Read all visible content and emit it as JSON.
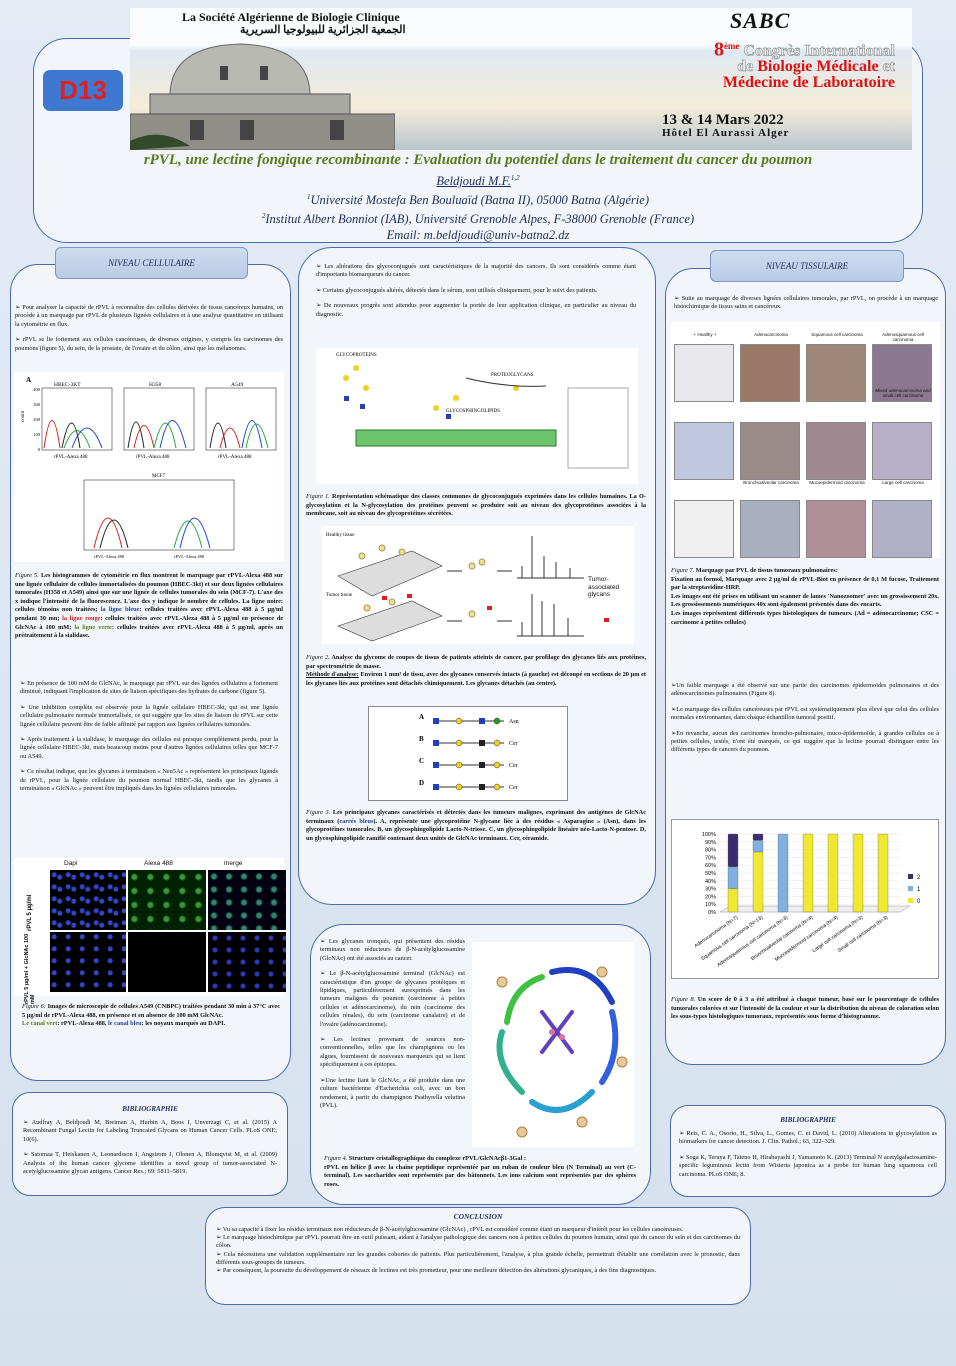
{
  "banner": {
    "society_fr": "La Société Algérienne de Biologie Clinique",
    "society_ar": "الجمعية الجزائرية للبيولوجيا السريرية",
    "logo": "SABC",
    "congress_line1_num": "8",
    "congress_line1_sup": "ème",
    "congress_line1": "Congrès International",
    "congress_line2_pre": "de",
    "congress_line2": "Biologie Médicale",
    "congress_line2_post": "et",
    "congress_line3": "Médecine de Laboratoire",
    "dates": "13 & 14 Mars 2022",
    "venue": "Hôtel El Aurassi Alger"
  },
  "badge": "D13",
  "header": {
    "title": "rPVL, une lectine fongique recombinante : Evaluation du potentiel dans le traitement du cancer du poumon",
    "author": "Beldjoudi M.F.",
    "author_sup": "1,2",
    "aff1_sup": "1",
    "aff1": "Université Mostefa Ben Bouluaïd (Batna II), 05000 Batna (Algérie)",
    "aff2_sup": "2",
    "aff2": "Institut Albert Bonniot (IAB), Université Grenoble Alpes, F-38000 Grenoble (France)",
    "email": "Email: m.beldjoudi@univ-batna2.dz"
  },
  "colors": {
    "accent": "#4a6aa8",
    "title_green": "#5a7a1a",
    "badge_bg": "#3e78d0",
    "badge_text": "#e02020"
  },
  "left": {
    "label": "NIVEAU CELLULAIRE",
    "intro": [
      "➢ Pour analyser la capacité de rPVL à reconnaître des cellules dérivées de tissus cancéreux humains, on procède à un marquage par rPVL de plusieurs lignées cellulaires et à une analyse quantitative en utilisant la cytométrie en flux.",
      "➢ rPVL se lie fortement aux cellules cancéreuses, de diverses origines, y compris les carcinomes des poumons (figure 5), du sein, de la prostate, de l'ovaire et du côlon, ainsi que les mélanomes."
    ],
    "fig5": {
      "panel": "A",
      "lines": [
        "HBEC-3KT",
        "H358",
        "A549",
        "MCF7"
      ],
      "xlabel": "rPVL-Alexa 488",
      "ylabel": "count",
      "yticks": [
        "0",
        "100",
        "200",
        "300",
        "400"
      ]
    },
    "fig5_caption": {
      "fig": "Figure 5.",
      "text": " Les histogrammes de cytométrie en flux montrent le marquage par rPVL-Alexa 488 sur une lignée cellulaire de cellules immortalisées du poumon (HBEC-3kt) et sur deux lignées cellulaires tumorales (H358 et A549) ainsi que sur une lignée de cellules tumorales du sein (MCF-7). L'axe des x indique l'intensité de la fluorescence. L'axe des y indique le nombre de cellules. La ligne noire: cellules témoins non traitées; ",
      "blue": "la ligne bleue",
      "t2": ": cellules traitées avec rPVL-Alexa 488 à 5 µg/ml pendant 30 mn; ",
      "red": "la ligne rouge",
      "t3": ": cellules traitées avec rPVL-Alexa 488 à 5 µg/ml en présence de GlcNAc à 100 mM; ",
      "green": "la ligne verte",
      "t4": ": cellules traitées avec rPVL-Alexa 488 à 5 µg/ml, après un prétraitement à la sialidase."
    },
    "points": [
      "➢ En présence de 100 mM de GlcNAc, le marquage par rPVL sur des lignées cellulaires a fortement diminué, indiquant l'implication de sites de liaison spécifiques des hydrates de carbone (figure 5).",
      "➢ Une inhibition complète est observée pour la lignée cellulaire HBEC-3kt, qui est une lignée cellulaire pulmonaire normale immortalisée, ce qui suggère que les sites de liaison de rPVL sur cette lignée cellulaire peuvent être de faible affinité par rapport aux lignées cellulaires tumorales.",
      "➢ Après traitement à la sialidase, le marquage des cellules est presque complètement perdu, pour la lignée cellulaire HBEC-3kt, mais beaucoup moins pour d'autres lignées cellulaires telles que MCF-7 ou A549.",
      "➢ Ce résultat indique, que les glycanes à terminaison « Neu5Ac » représentent les principaux ligands de rPVL, pour la lignée cellulaire du poumon normal HBEC-3kt, tandis que les glycanes à terminaison « GlcNAc » peuvent être impliqués dans les lignées cellulaires tumorales."
    ],
    "fig6": {
      "cols": [
        "Dapi",
        "Alexa 488",
        "merge"
      ],
      "rows": [
        "rPVL 5 µg/ml",
        "rPVL 5 µg/ml + GlcNAc 100 mM"
      ]
    },
    "fig6_caption": {
      "fig": "Figure 6:",
      "text": " Images de microscopie de cellules A549 (CNBPC) traitées pendant 30 min à 37°C avec 5 µg/ml de rPVL-Alexa 488, en présence et en absence de 100 mM GlcNAc.",
      "green": "Le canal vert",
      "t2": ": rPVL-Alexa 488, ",
      "blue": "le canal bleu",
      "t3": ": les noyaux marqués au DAPI."
    }
  },
  "biblio_left": {
    "title": "BIBLIOGRAPHIE",
    "refs": [
      "➢ Audfray A, Beldjoudi M, Breiman A, Hurbin A, Boos I, Unverzagt C, et al. (2015) A Recombinant Fungal Lectin for Labeling Truncated Glycans on Human Cancer Cells. PLoS ONE; 10(6).",
      "➢ Satomaa T, Heiskanen A, Leonardsson I, Angstrom J, Olonen A, Blomqvist M, et al. (2009) Analysis of the human cancer glycome identifies a novel group of tumor-associated N-acetylglucosamine glycan antigens. Cancer Res.; 69: 5811–5819."
    ]
  },
  "middle": {
    "intro": [
      "➢ Les altérations des glycoconjugués sont caractéristiques de la majorité des cancers. Ils sont considérés comme étant d'importants biomarqueurs du cancer.",
      "➢ Certains glycoconjugués altérés, détectés dans le sérum, sont utilisés cliniquement, pour le suivi des patients.",
      "➢ De nouveaux progrès sont attendus pour augmenter la portée de leur application clinique, en particulier au niveau du diagnostic."
    ],
    "fig1_labels": [
      "GLYCOPROTEINS",
      "PROTEOGLYCANS",
      "GLYCOSPHINGOLIPIDS"
    ],
    "fig1_caption": {
      "fig": "Figure 1.",
      "text": " Représentation schématique des classes communes de glycoconjugués exprimées dans les cellules humaines. La O-glycosylation et la N-glycosylation des protéines peuvent se produire soit au niveau des glycoprotéines associées à la membrane, soit au niveau des glycoprotéines sécrétées."
    },
    "fig2_labels": {
      "healthy": "Healthy tissue",
      "tumor": "Tumor tissue",
      "tag": "Tumor-associated glycans"
    },
    "fig2_caption": {
      "fig": "Figure 2.",
      "text": " Analyse du glycome de coupes de tissus de patients atteints de cancer, par profilage des glycanes liés aux protéines, par spectrométrie de masse.",
      "method_label": "Méthode d'analyse:",
      "method": " Environ 1 mm³ de tissu, avec des glycanes conservés intacts (à gauche) est découpé en sections de 20 µm et les glycanes liés aux protéines sont détachés chimiquement. Les glycanes détachés (au centre)."
    },
    "fig3_rows": [
      {
        "k": "A",
        "end": "Asn"
      },
      {
        "k": "B",
        "end": "Cer"
      },
      {
        "k": "C",
        "end": "Cer"
      },
      {
        "k": "D",
        "end": "Cer"
      }
    ],
    "fig3_caption": {
      "fig": "Figure 3.",
      "text": " Les principaux glycanes caractérisés et détectés dans les tumeurs malignes, exprimant des antigènes de GlcNAc terminaux (",
      "blue": "carrés bleus",
      "t2": "). A, représente une glycoprotéine N-glycane liée à des résidus « Asparagine » (Asn), dans les glycoprotéines tumorales. B, un glycosphingolipide Lacto-N-triose. C, un glycosphingolipide linéaire néo-Lacto-N-pentose. D, un glycosphingolipide ramifié contenant deux unités de GlcNAc terminaux. Cer, céramide."
    },
    "points": [
      "➢ Les glycanes tronqués, qui présentent des résidus terminaux non réducteurs de β-N-acétylglucosamine (GlcNAc) ont été associés au cancer.",
      "➢ Le β-N-acétylglucosamine terminal (GlcNAc) est caractéristique d'un groupe de glycanes protéiques et lipidiques, particulièrement surexprimés dans les tumeurs malignes du poumon (carcinome à petites cellules et adénocarcinome), du rein (carcinome des cellules rénales), du sein (carcinome canalaire) et de l'ovaire (adénocarcinome).",
      "➢ Les lectines provenant de sources non-conventionnelles, telles que les champignons ou les algues, fournissent de nouveaux marqueurs qui se lient spécifiquement à ces épitopes.",
      "➢Une lectine liant le GlcNAc, a été produite dans une culture bactérienne d'Escherichia coli, avec un bon rendement, à partir du champignon Psathyrella velutina (PVL)."
    ],
    "fig4_caption": {
      "fig": "Figure 4.",
      "title": " Structure cristallographique du complexe rPVL/GlcNAcβ1-3Gal :",
      "text": "rPVL en hélice β avec la chaîne peptidique représentée par un ruban de couleur bleu (N Terminal) au vert (C-terminal). Les saccharides sont représentés par des bâtonnets. Les ions calcium sont représentés par des sphères roses."
    }
  },
  "right": {
    "label": "NIVEAU TISSULAIRE",
    "intro": "➢ Suite au marquage de diverses lignées cellulaires tumorales, par rPVL, on procède à un marquage histochimique de tissus sains et cancéreux.",
    "fig7_labels": [
      "+ Healthy +",
      "Adenocarcinoma",
      "Squamous cell carcinoma",
      "Adenosquamous cell carcinoma",
      "Mixed adenocarcinoma and small cell carcinoma",
      "Bronchioalveolar carcinoma",
      "Mucoepidermoid carcinoma",
      "Large cell carcinoma"
    ],
    "fig7_caption": {
      "fig": "Figure 7.",
      "lines": [
        " Marquage par PVL de tissus tumoraux pulmonaires:",
        "Fixation au formol, Marquage avec 2 µg/ml de rPVL-Biot en présence de 0,1 M fucose, Traitement par la streptavidine-HRP.",
        "Les images ont été prises en utilisant un scanner de lames 'Nanozoomer' avec un grossissement 20x. Les grossissements numériques 40x sont également présentés dans des encarts.",
        "Les images représentent différents types histologiques de tumeurs. (Ad = adénocarcinome; CSC = carcinome à petites cellules)"
      ]
    },
    "points": [
      "➢Un faible marquage a été observé sur une partie des carcinomes épidermoïdes pulmonaires et des adénocarcinomes pulmonaires (Figure 8).",
      "➢Le marquage des cellules cancéreuses par rPVL est systématiquement plus élevé que celui des cellules normales environnantes, dans chaque échantillon tumoral positif.",
      "➢En revanche, aucun des carcinomes broncho-pulmonaire, muco-épidermoïde, à grandes cellules ou à petites cellules, testés, n'ont été marqués, ce qui suggère que la lectine pourrait distinguer entre les différents types de cancers du poumon."
    ],
    "fig8_caption": {
      "fig": "Figure 8.",
      "text": " Un score de 0 à 3 a été attribué à chaque tumeur, basé sur le pourcentage de cellules tumorales colorées et sur l'intensité de la couleur et sur la distribution du niveau de coloration selon les sous-types histologiques tumoraux, représentés sous forme d'histogramme."
    }
  },
  "chart_data": {
    "type": "bar",
    "stacked": true,
    "categories": [
      "Adenocarcinoma (N=7)",
      "Squamous cell carcinoma (N=13)",
      "Adenosquamous cell carcinoma (N=3)",
      "Bronchioalveolar cacinoma (N=4)",
      "Mucoepidermoid carcinoma (N=4)",
      "Large cell carcinoma (N=3)",
      "Small cell carcinoma (N=3)"
    ],
    "series": [
      {
        "name": "0",
        "color": "#f0e830",
        "values": [
          30,
          77,
          0,
          100,
          100,
          100,
          100
        ]
      },
      {
        "name": "1",
        "color": "#7fb0e0",
        "values": [
          28,
          15,
          100,
          0,
          0,
          0,
          0
        ]
      },
      {
        "name": "2",
        "color": "#3d2d6e",
        "values": [
          42,
          8,
          0,
          0,
          0,
          0,
          0
        ]
      }
    ],
    "yticks": [
      "0%",
      "10%",
      "20%",
      "30%",
      "40%",
      "50%",
      "60%",
      "70%",
      "80%",
      "90%",
      "100%"
    ],
    "ylim": [
      0,
      100
    ],
    "legend": "right"
  },
  "biblio_right": {
    "title": "BIBLIOGRAPHIE",
    "refs": [
      "➢ Reis, C. A., Osorio, H., Silva, L., Gomes, C. et David, L. (2010) Alterations in glycosylation as biomarkers for cancer detection. J. Clin. Pathol.; 63, 322–329.",
      "➢ Soga K, Teruya F, Tateno H, Hirabayashi J, Yamamoto K. (2013) Terminal N acetylgalactosamine-specific leguminous lectin from Wisteria japonica as a probe for human lung squamous cell carcinoma. PLoS ONE; 8."
    ]
  },
  "conclusion": {
    "title": "CONCLUSION",
    "points": [
      "➢ Vu sa capacité à fixer les résidus terminaux non réducteurs de β-N-acétylglucosamine (GlcNAc) , rPVL est considéré comme étant un marqueur d'intérêt pour les cellules cancéreuses.",
      "➢ Le marquage histochimique par rPVL pourrait être un outil puissant, aidant à l'analyse pathologique des cancers non à petites cellules du poumon humain, ainsi que du cancer du sein et des carcinomes du côlon.",
      "➢ Cela nécessitera une validation supplémentaire sur les grandes cohortes de patients. Plus particulièrement, l'analyse, à plus grande échelle, permettrait d'établir une corrélation avec le pronostic, dans différents sous-groupes de tumeurs.",
      "➢ Par conséquent, la poursuite du développement de réseaux de lectines est très prometteur, pour une meilleure détection des altérations glycaniques, à des fins diagnostiques."
    ]
  }
}
